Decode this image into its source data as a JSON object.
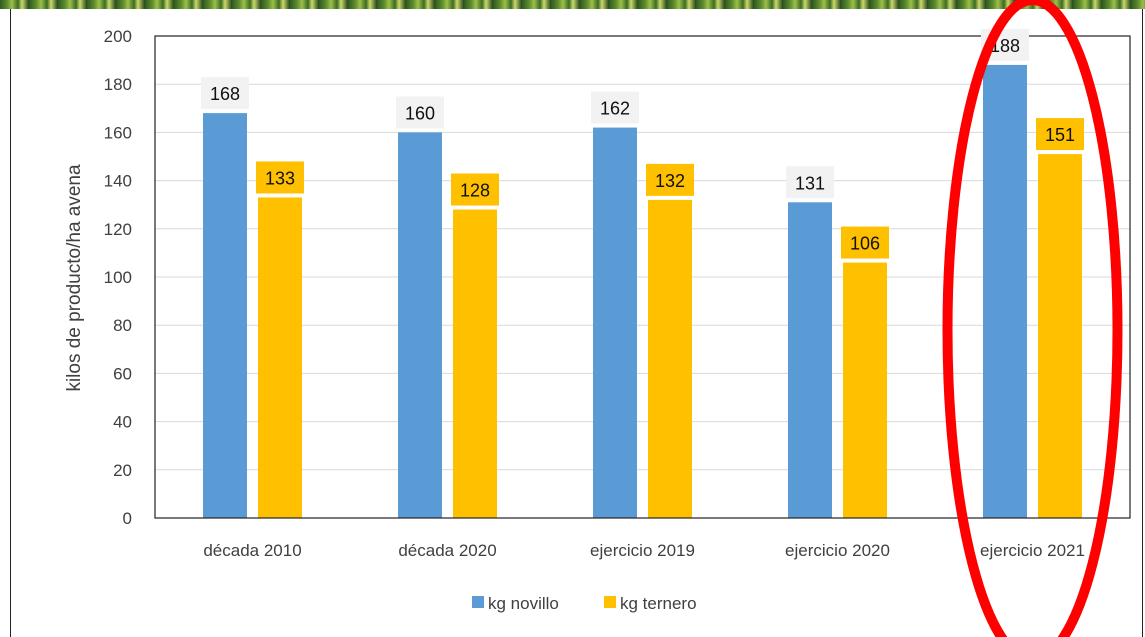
{
  "chart_data": {
    "type": "bar",
    "categories": [
      "década 2010",
      "década 2020",
      "ejercicio 2019",
      "ejercicio 2020",
      "ejercicio 2021"
    ],
    "series": [
      {
        "name": "kg novillo",
        "values": [
          168,
          160,
          162,
          131,
          188
        ],
        "color": "#5b9bd5",
        "label_bg": "#f2f2f2"
      },
      {
        "name": "kg ternero",
        "values": [
          133,
          128,
          132,
          106,
          151
        ],
        "color": "#ffc000",
        "label_bg": "#ffc000"
      }
    ],
    "title": "",
    "xlabel": "",
    "ylabel": "kilos de producto/ha avena",
    "ylim": [
      0,
      200
    ],
    "yticks": [
      0,
      20,
      40,
      60,
      80,
      100,
      120,
      140,
      160,
      180,
      200
    ],
    "grid": true,
    "legend_position": "bottom",
    "highlight": {
      "category": "ejercicio 2021",
      "shape": "ellipse",
      "color": "#ff0000"
    }
  }
}
